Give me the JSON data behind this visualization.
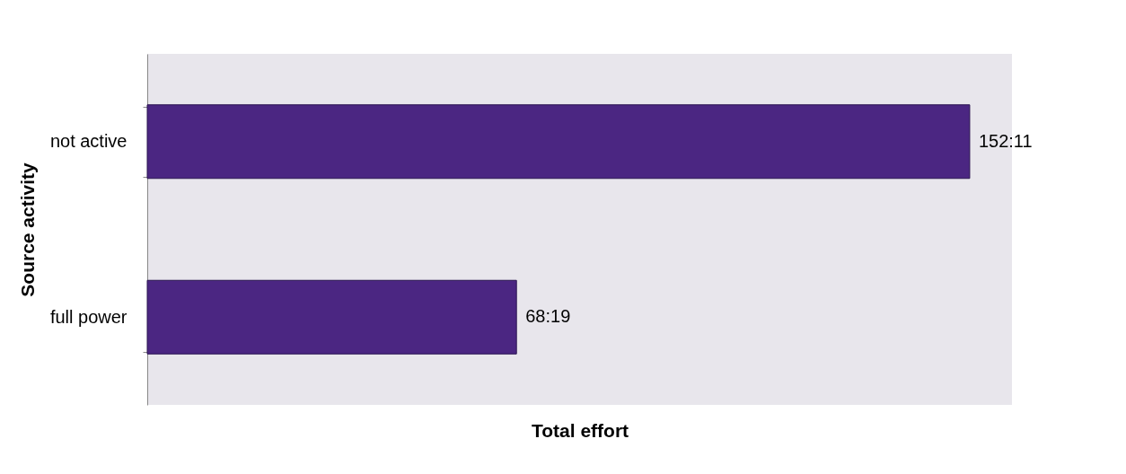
{
  "chart_data": {
    "type": "bar",
    "orientation": "horizontal",
    "xlabel": "Total effort",
    "ylabel": "Source activity",
    "categories": [
      "not active",
      "full power"
    ],
    "values": [
      152.18,
      68.32
    ],
    "value_labels": [
      "152:11",
      "68:19"
    ],
    "color": "#4b2682",
    "tick_labels": "y",
    "grid": false
  }
}
